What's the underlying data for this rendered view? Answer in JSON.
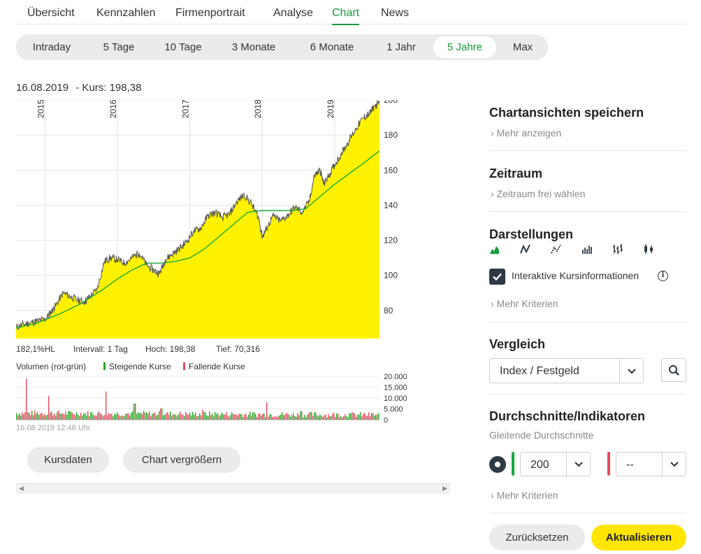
{
  "nav": {
    "tabs": [
      "Übersicht",
      "Kennzahlen",
      "Firmenportrait",
      "Analyse",
      "Chart",
      "News"
    ],
    "active": "Chart"
  },
  "range": {
    "options": [
      "Intraday",
      "5 Tage",
      "10 Tage",
      "3 Monate",
      "6 Monate",
      "1 Jahr",
      "5 Jahre",
      "Max"
    ],
    "active": "5 Jahre"
  },
  "chart": {
    "date": "16.08.2019",
    "kurs_label": "- Kurs: 198,38",
    "stats": {
      "hl": "182,1%HL",
      "intervall": "Intervall: 1 Tag",
      "hoch": "Hoch:  198,38",
      "tief": "Tief:  70,316"
    },
    "volume": {
      "title": "Volumen (rot-grün)",
      "rising": "Steigende Kurse",
      "falling": "Fallende Kurse",
      "timestamp": "16.08.2019 12:46 Uhr"
    },
    "colors": {
      "area": "#fff200",
      "price_line": "#555555",
      "sma": "#18a83a",
      "rising": "#22aa22",
      "falling": "#e8475f"
    }
  },
  "chart_data": [
    {
      "type": "area",
      "x_labels": [
        "2015",
        "2016",
        "2017",
        "2018",
        "2019"
      ],
      "y_ticks": [
        80,
        100,
        120,
        140,
        160,
        180,
        200
      ],
      "ylim": [
        64,
        200
      ],
      "series": [
        {
          "values": [
            [
              2014.6,
              70.5
            ],
            [
              2014.7,
              72
            ],
            [
              2014.8,
              73
            ],
            [
              2014.9,
              74
            ],
            [
              2015.0,
              75
            ],
            [
              2015.08,
              79
            ],
            [
              2015.15,
              83
            ],
            [
              2015.25,
              90
            ],
            [
              2015.35,
              88
            ],
            [
              2015.45,
              86
            ],
            [
              2015.55,
              85
            ],
            [
              2015.62,
              88
            ],
            [
              2015.72,
              92
            ],
            [
              2015.82,
              108
            ],
            [
              2015.9,
              110
            ],
            [
              2016.0,
              109
            ],
            [
              2016.1,
              107
            ],
            [
              2016.2,
              110
            ],
            [
              2016.3,
              113
            ],
            [
              2016.4,
              106
            ],
            [
              2016.5,
              103
            ],
            [
              2016.58,
              101
            ],
            [
              2016.66,
              109
            ],
            [
              2016.75,
              112
            ],
            [
              2016.85,
              115
            ],
            [
              2016.95,
              119
            ],
            [
              2017.05,
              125
            ],
            [
              2017.15,
              127
            ],
            [
              2017.25,
              134
            ],
            [
              2017.35,
              136
            ],
            [
              2017.45,
              133
            ],
            [
              2017.55,
              135
            ],
            [
              2017.65,
              142
            ],
            [
              2017.75,
              146
            ],
            [
              2017.85,
              141
            ],
            [
              2017.95,
              133
            ],
            [
              2018.0,
              122
            ],
            [
              2018.05,
              126
            ],
            [
              2018.15,
              134
            ],
            [
              2018.25,
              131
            ],
            [
              2018.35,
              134
            ],
            [
              2018.45,
              139
            ],
            [
              2018.55,
              136
            ],
            [
              2018.65,
              142
            ],
            [
              2018.72,
              157
            ],
            [
              2018.8,
              160
            ],
            [
              2018.85,
              152
            ],
            [
              2018.92,
              157
            ],
            [
              2019.0,
              163
            ],
            [
              2019.1,
              170
            ],
            [
              2019.2,
              177
            ],
            [
              2019.3,
              184
            ],
            [
              2019.4,
              190
            ],
            [
              2019.48,
              192
            ],
            [
              2019.54,
              196
            ],
            [
              2019.62,
              198.38
            ]
          ]
        },
        {
          "values": [
            [
              2014.6,
              70
            ],
            [
              2014.9,
              73
            ],
            [
              2015.2,
              78
            ],
            [
              2015.5,
              84
            ],
            [
              2015.8,
              92
            ],
            [
              2016.0,
              98
            ],
            [
              2016.2,
              103
            ],
            [
              2016.4,
              107
            ],
            [
              2016.6,
              107
            ],
            [
              2016.8,
              108
            ],
            [
              2017.0,
              110
            ],
            [
              2017.2,
              115
            ],
            [
              2017.4,
              122
            ],
            [
              2017.6,
              129
            ],
            [
              2017.8,
              136
            ],
            [
              2018.0,
              137
            ],
            [
              2018.2,
              137
            ],
            [
              2018.4,
              137
            ],
            [
              2018.6,
              138
            ],
            [
              2018.8,
              145
            ],
            [
              2019.0,
              152
            ],
            [
              2019.2,
              158
            ],
            [
              2019.4,
              164
            ],
            [
              2019.62,
              171
            ]
          ]
        }
      ]
    },
    {
      "type": "bar",
      "y_ticks": [
        "20.000",
        "15.000",
        "10.000",
        "5.000",
        "0"
      ],
      "ylim": [
        0,
        20000
      ],
      "peaks": [
        [
          2014.74,
          19000
        ],
        [
          2015.05,
          11000
        ],
        [
          2015.83,
          13000
        ],
        [
          2016.23,
          7500
        ],
        [
          2016.6,
          5200
        ],
        [
          2017.17,
          4500
        ],
        [
          2018.06,
          8000
        ],
        [
          2018.53,
          4000
        ],
        [
          2019.2,
          3000
        ]
      ]
    }
  ],
  "buttons": {
    "kursdaten": "Kursdaten",
    "vergroessern": "Chart vergrößern"
  },
  "panel": {
    "save_title": "Chartansichten speichern",
    "save_link": "Mehr anzeigen",
    "zeitraum_title": "Zeitraum",
    "zeitraum_link": "Zeitraum frei wählen",
    "darst_title": "Darstellungen",
    "darst_icons": [
      "area-chart-icon",
      "line-chart-icon",
      "dotted-line-chart-icon",
      "ohlc-chart-icon",
      "ohlc-bars-icon",
      "candlestick-icon"
    ],
    "interaktiv_label": "Interaktive Kursinformationen",
    "darst_more": "Mehr Kriterien",
    "vergleich_title": "Vergleich",
    "vergleich_select": "Index / Festgeld",
    "indik_title": "Durchschnitte/Indikatoren",
    "indik_sub": "Gleitende Durchschnitte",
    "sma1": "200",
    "sma2": "--",
    "indik_more": "Mehr Kriterien",
    "reset": "Zurücksetzen",
    "update": "Aktualisieren"
  }
}
